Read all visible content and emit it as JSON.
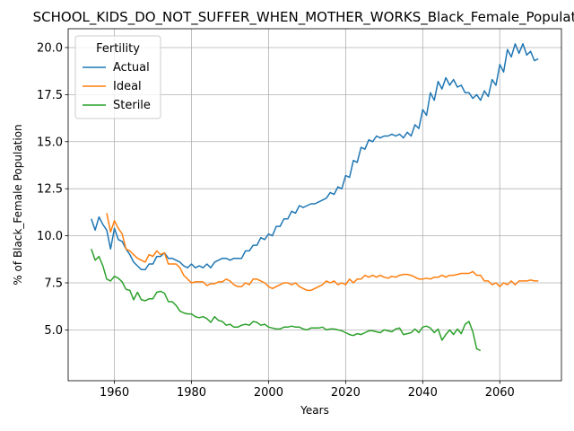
{
  "chart_data": {
    "type": "line",
    "title": "SCHOOL_KIDS_DO_NOT_SUFFER_WHEN_MOTHER_WORKS_Black_Female_Population",
    "xlabel": "Years",
    "ylabel": "% of Black_Female Population",
    "xlim": [
      1948,
      2076
    ],
    "ylim": [
      2.3,
      21.0
    ],
    "xticks": [
      1960,
      1980,
      2000,
      2020,
      2040,
      2060
    ],
    "yticks": [
      5.0,
      7.5,
      10.0,
      12.5,
      15.0,
      17.5,
      20.0
    ],
    "xtick_labels": [
      "1960",
      "1980",
      "2000",
      "2020",
      "2040",
      "2060"
    ],
    "ytick_labels": [
      "5.0",
      "7.5",
      "10.0",
      "12.5",
      "15.0",
      "17.5",
      "20.0"
    ],
    "grid": true,
    "legend": {
      "title": "Fertility",
      "placement": "top-left"
    },
    "series": [
      {
        "name": "Actual",
        "color": "#1f77b4",
        "x": [
          1954,
          1955,
          1956,
          1957,
          1958,
          1959,
          1960,
          1961,
          1962,
          1963,
          1964,
          1965,
          1966,
          1967,
          1968,
          1969,
          1970,
          1971,
          1972,
          1973,
          1974,
          1975,
          1976,
          1977,
          1978,
          1979,
          1980,
          1981,
          1982,
          1983,
          1984,
          1985,
          1986,
          1987,
          1988,
          1989,
          1990,
          1991,
          1992,
          1993,
          1994,
          1995,
          1996,
          1997,
          1998,
          1999,
          2000,
          2001,
          2002,
          2003,
          2004,
          2005,
          2006,
          2007,
          2008,
          2009,
          2010,
          2011,
          2012,
          2013,
          2014,
          2015,
          2016,
          2017,
          2018,
          2019,
          2020,
          2021,
          2022,
          2023,
          2024,
          2025,
          2026,
          2027,
          2028,
          2029,
          2030,
          2031,
          2032,
          2033,
          2034,
          2035,
          2036,
          2037,
          2038,
          2039,
          2040,
          2041,
          2042,
          2043,
          2044,
          2045,
          2046,
          2047,
          2048,
          2049,
          2050,
          2051,
          2052,
          2053,
          2054,
          2055,
          2056,
          2057,
          2058,
          2059,
          2060,
          2061,
          2062,
          2063,
          2064,
          2065,
          2066,
          2067,
          2068,
          2069,
          2070
        ],
        "values": [
          10.9,
          10.3,
          11.0,
          10.6,
          10.3,
          9.3,
          10.4,
          9.8,
          9.7,
          9.3,
          9.0,
          8.6,
          8.4,
          8.2,
          8.2,
          8.5,
          8.5,
          8.9,
          8.9,
          9.1,
          8.8,
          8.8,
          8.7,
          8.6,
          8.4,
          8.3,
          8.5,
          8.3,
          8.4,
          8.3,
          8.5,
          8.3,
          8.6,
          8.7,
          8.8,
          8.8,
          8.7,
          8.8,
          8.8,
          8.8,
          9.2,
          9.2,
          9.5,
          9.5,
          9.9,
          9.8,
          10.1,
          10.0,
          10.5,
          10.5,
          10.9,
          10.9,
          11.3,
          11.2,
          11.6,
          11.5,
          11.6,
          11.7,
          11.7,
          11.8,
          11.9,
          12.0,
          12.3,
          12.2,
          12.6,
          12.5,
          13.2,
          13.1,
          14.0,
          13.9,
          14.7,
          14.6,
          15.1,
          15.0,
          15.3,
          15.2,
          15.3,
          15.3,
          15.4,
          15.3,
          15.4,
          15.2,
          15.5,
          15.3,
          15.9,
          15.7,
          16.7,
          16.4,
          17.6,
          17.2,
          18.2,
          17.8,
          18.4,
          18.0,
          18.3,
          17.9,
          18.0,
          17.6,
          17.6,
          17.3,
          17.5,
          17.2,
          17.7,
          17.4,
          18.3,
          18.0,
          19.1,
          18.7,
          19.9,
          19.5,
          20.2,
          19.7,
          20.2,
          19.6,
          19.8,
          19.3,
          19.4
        ]
      },
      {
        "name": "Ideal",
        "color": "#ff7f0e",
        "x": [
          1958,
          1959,
          1960,
          1961,
          1962,
          1963,
          1964,
          1965,
          1966,
          1967,
          1968,
          1969,
          1970,
          1971,
          1972,
          1973,
          1974,
          1975,
          1976,
          1977,
          1978,
          1979,
          1980,
          1981,
          1982,
          1983,
          1984,
          1985,
          1986,
          1987,
          1988,
          1989,
          1990,
          1991,
          1992,
          1993,
          1994,
          1995,
          1996,
          1997,
          1998,
          1999,
          2000,
          2001,
          2002,
          2003,
          2004,
          2005,
          2006,
          2007,
          2008,
          2009,
          2010,
          2011,
          2012,
          2013,
          2014,
          2015,
          2016,
          2017,
          2018,
          2019,
          2020,
          2021,
          2022,
          2023,
          2024,
          2025,
          2026,
          2027,
          2028,
          2029,
          2030,
          2031,
          2032,
          2033,
          2034,
          2035,
          2036,
          2037,
          2038,
          2039,
          2040,
          2041,
          2042,
          2043,
          2044,
          2045,
          2046,
          2047,
          2048,
          2049,
          2050,
          2051,
          2052,
          2053,
          2054,
          2055,
          2056,
          2057,
          2058,
          2059,
          2060,
          2061,
          2062,
          2063,
          2064,
          2065,
          2066,
          2067,
          2068,
          2069,
          2070
        ],
        "values": [
          11.2,
          10.2,
          10.8,
          10.4,
          10.1,
          9.3,
          9.2,
          9.0,
          8.8,
          8.7,
          8.6,
          9.0,
          8.9,
          9.2,
          9.0,
          9.1,
          8.5,
          8.5,
          8.5,
          8.3,
          7.9,
          7.7,
          7.5,
          7.55,
          7.55,
          7.55,
          7.35,
          7.45,
          7.45,
          7.55,
          7.55,
          7.7,
          7.6,
          7.4,
          7.3,
          7.3,
          7.5,
          7.4,
          7.7,
          7.7,
          7.6,
          7.5,
          7.3,
          7.2,
          7.3,
          7.4,
          7.5,
          7.5,
          7.4,
          7.5,
          7.3,
          7.2,
          7.1,
          7.1,
          7.2,
          7.3,
          7.4,
          7.6,
          7.5,
          7.6,
          7.4,
          7.5,
          7.4,
          7.7,
          7.5,
          7.7,
          7.7,
          7.9,
          7.8,
          7.9,
          7.8,
          7.9,
          7.8,
          7.75,
          7.85,
          7.8,
          7.9,
          7.95,
          7.95,
          7.9,
          7.8,
          7.7,
          7.7,
          7.75,
          7.7,
          7.8,
          7.8,
          7.9,
          7.8,
          7.9,
          7.9,
          7.95,
          8.0,
          8.0,
          8.0,
          8.1,
          7.9,
          7.9,
          7.6,
          7.6,
          7.4,
          7.5,
          7.3,
          7.5,
          7.4,
          7.6,
          7.4,
          7.6,
          7.6,
          7.6,
          7.65,
          7.6,
          7.6
        ],
        "note_hidden": ""
      },
      {
        "name": "Sterile",
        "color": "#2ca02c",
        "x": [
          1954,
          1955,
          1956,
          1957,
          1958,
          1959,
          1960,
          1961,
          1962,
          1963,
          1964,
          1965,
          1966,
          1967,
          1968,
          1969,
          1970,
          1971,
          1972,
          1973,
          1974,
          1975,
          1976,
          1977,
          1978,
          1979,
          1980,
          1981,
          1982,
          1983,
          1984,
          1985,
          1986,
          1987,
          1988,
          1989,
          1990,
          1991,
          1992,
          1993,
          1994,
          1995,
          1996,
          1997,
          1998,
          1999,
          2000,
          2001,
          2002,
          2003,
          2004,
          2005,
          2006,
          2007,
          2008,
          2009,
          2010,
          2011,
          2012,
          2013,
          2014,
          2015,
          2016,
          2017,
          2018,
          2019,
          2020,
          2021,
          2022,
          2023,
          2024,
          2025,
          2026,
          2027,
          2028,
          2029,
          2030,
          2031,
          2032,
          2033,
          2034,
          2035,
          2036,
          2037,
          2038,
          2039,
          2040,
          2041,
          2042,
          2043,
          2044,
          2045,
          2046,
          2047,
          2048,
          2049,
          2050,
          2051,
          2052,
          2053,
          2054,
          2055
        ],
        "values": [
          9.3,
          8.7,
          8.9,
          8.4,
          7.7,
          7.6,
          7.85,
          7.75,
          7.55,
          7.15,
          7.1,
          6.6,
          7.0,
          6.6,
          6.55,
          6.65,
          6.65,
          7.0,
          7.05,
          6.95,
          6.5,
          6.5,
          6.3,
          6.0,
          5.9,
          5.85,
          5.85,
          5.7,
          5.65,
          5.7,
          5.6,
          5.4,
          5.7,
          5.5,
          5.45,
          5.25,
          5.3,
          5.15,
          5.15,
          5.25,
          5.3,
          5.25,
          5.45,
          5.4,
          5.25,
          5.3,
          5.15,
          5.1,
          5.05,
          5.05,
          5.15,
          5.15,
          5.2,
          5.15,
          5.15,
          5.05,
          5.0,
          5.1,
          5.1,
          5.1,
          5.15,
          5.0,
          5.05,
          5.05,
          5.0,
          4.95,
          4.85,
          4.75,
          4.7,
          4.8,
          4.75,
          4.85,
          4.95,
          4.95,
          4.9,
          4.85,
          5.0,
          4.95,
          4.9,
          5.05,
          5.1,
          4.75,
          4.8,
          4.85,
          5.05,
          4.85,
          5.15,
          5.2,
          5.1,
          4.85,
          5.05,
          4.45,
          4.75,
          5.0,
          4.75,
          5.05,
          4.8,
          5.3,
          5.45,
          4.9,
          4.0,
          3.9
        ]
      }
    ]
  }
}
